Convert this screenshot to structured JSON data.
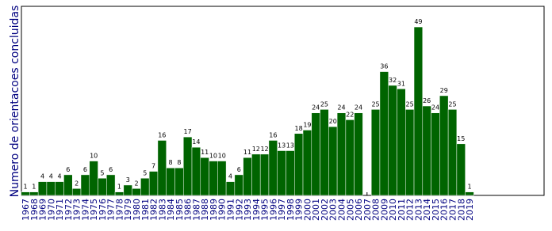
{
  "chart_data": {
    "type": "bar",
    "ylabel": "Numero de orientacoes concluidas",
    "categories": [
      "1967",
      "1968",
      "1969",
      "1970",
      "1971",
      "1972",
      "1973",
      "1974",
      "1975",
      "1976",
      "1977",
      "1978",
      "1979",
      "1980",
      "1981",
      "1982",
      "1983",
      "1984",
      "1985",
      "1986",
      "1987",
      "1988",
      "1989",
      "1990",
      "1991",
      "1992",
      "1993",
      "1994",
      "1995",
      "1996",
      "1997",
      "1998",
      "1999",
      "2000",
      "2001",
      "2002",
      "2003",
      "2004",
      "2005",
      "2006",
      "2007",
      "2008",
      "2009",
      "2010",
      "2011",
      "2012",
      "2013",
      "2014",
      "2015",
      "2016",
      "2017",
      "2018",
      "2019"
    ],
    "values": [
      1,
      1,
      4,
      4,
      4,
      6,
      2,
      6,
      10,
      5,
      6,
      1,
      3,
      2,
      5,
      7,
      16,
      8,
      8,
      17,
      14,
      11,
      10,
      10,
      4,
      6,
      11,
      12,
      12,
      16,
      13,
      13,
      18,
      19,
      24,
      25,
      20,
      24,
      22,
      24,
      null,
      25,
      36,
      32,
      31,
      25,
      49,
      26,
      24,
      29,
      25,
      15,
      1
    ],
    "color": "#006400",
    "ylim": [
      0,
      55
    ]
  }
}
